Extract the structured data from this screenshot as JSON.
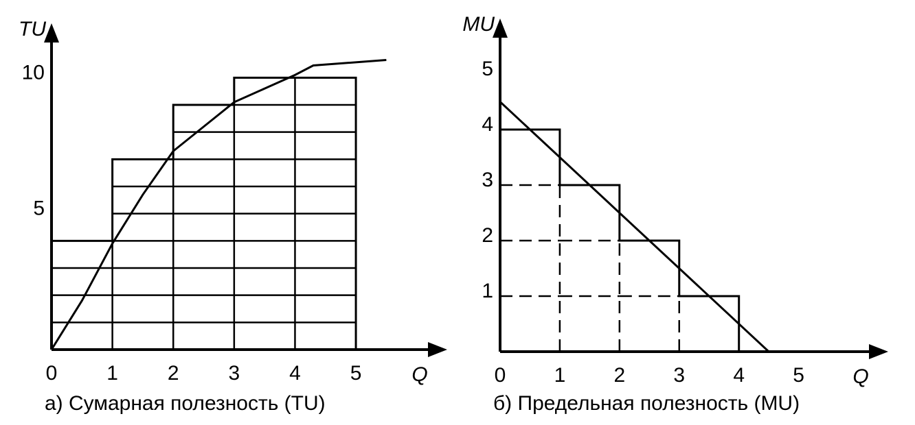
{
  "chart_data": [
    {
      "type": "histogram",
      "bins": [
        0,
        1,
        2,
        3,
        4,
        5
      ],
      "values": [
        4,
        7,
        9,
        10,
        10
      ],
      "line": {
        "x": [
          0,
          0.5,
          1,
          1.5,
          2,
          2.5,
          3,
          4,
          4.3,
          5.5
        ],
        "values": [
          0,
          1.8,
          3.9,
          5.7,
          7.3,
          8.2,
          9.1,
          10.1,
          10.45,
          10.65
        ]
      },
      "xlim": [
        0,
        6.5
      ],
      "ylim": [
        0,
        12
      ],
      "xticks": [
        0,
        1,
        2,
        3,
        4,
        5
      ],
      "yticks": [
        5,
        10
      ],
      "x_label": "Q",
      "y_label": "TU",
      "bar_divisions": "solid",
      "color": "#000000",
      "caption": "а) Сумарная полезность (TU)"
    },
    {
      "type": "histogram",
      "bins": [
        0,
        1,
        2,
        3,
        4
      ],
      "values": [
        4,
        3,
        2,
        1
      ],
      "line": {
        "x": [
          0,
          4.5
        ],
        "values": [
          4.5,
          0
        ]
      },
      "xlim": [
        0,
        6.5
      ],
      "ylim": [
        0,
        6
      ],
      "xticks": [
        0,
        1,
        2,
        3,
        4,
        5
      ],
      "yticks": [
        1,
        2,
        3,
        4,
        5
      ],
      "x_label": "Q",
      "y_label": "MU",
      "bar_divisions": "dashed",
      "color": "#000000",
      "caption": "б) Предельная полезность (MU)"
    }
  ]
}
